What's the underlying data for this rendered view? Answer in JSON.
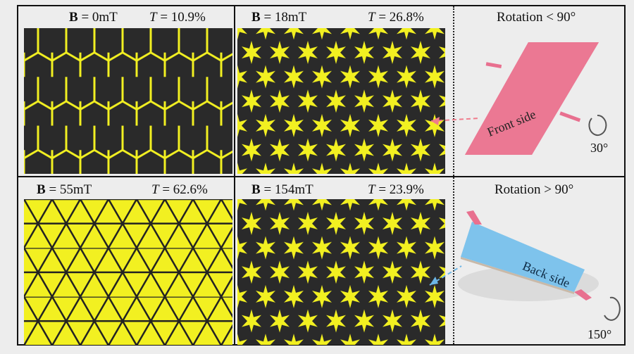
{
  "panels": [
    {
      "field_label": "B",
      "field_value": " = 0mT",
      "t_label": "T",
      "t_value": " = 10.9%",
      "state": "open-lines"
    },
    {
      "field_label": "B",
      "field_value": " = 18mT",
      "t_label": "T",
      "t_value": " = 26.8%",
      "state": "stars"
    },
    {
      "field_label": "B",
      "field_value": " = 55mT",
      "t_label": "T",
      "t_value": " = 62.6%",
      "state": "closed-yellow"
    },
    {
      "field_label": "B",
      "field_value": " = 154mT",
      "t_label": "T",
      "t_value": " = 23.9%",
      "state": "stars"
    }
  ],
  "schematics": [
    {
      "title": "Rotation < 90°",
      "side_label": "Front side",
      "angle": "30°",
      "color": "#e8708f"
    },
    {
      "title": "Rotation > 90°",
      "side_label": "Back side",
      "angle": "150°",
      "color": "#7ec3ec"
    }
  ],
  "colors": {
    "yellow": "#f2f021",
    "dark": "#2a2a2a"
  }
}
